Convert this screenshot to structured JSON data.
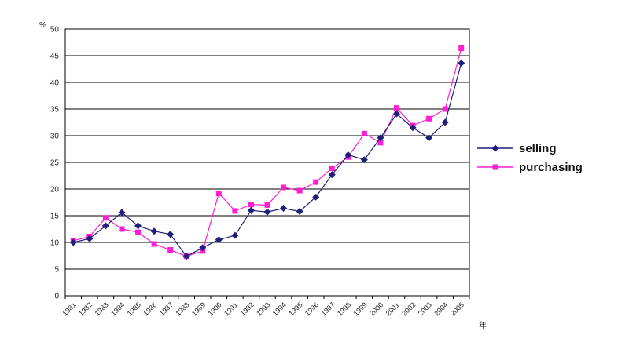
{
  "chart_data": {
    "type": "line",
    "y_unit_label": "%",
    "x_unit_label": "年",
    "categories": [
      "1981",
      "1982",
      "1983",
      "1984",
      "1985",
      "1986",
      "1987",
      "1988",
      "1989",
      "1900",
      "1991",
      "1992",
      "1993",
      "1994",
      "1995",
      "1996",
      "1997",
      "1998",
      "1999",
      "2000",
      "2001",
      "2002",
      "2003",
      "2004",
      "2005"
    ],
    "ylim": [
      0,
      50
    ],
    "yticks": [
      0,
      5,
      10,
      15,
      20,
      25,
      30,
      35,
      40,
      45,
      50
    ],
    "grid": true,
    "legend_position": "right",
    "series": [
      {
        "name": "selling",
        "color": "#1f1f7a",
        "marker": "diamond",
        "values": [
          10.0,
          10.7,
          13.1,
          15.6,
          13.1,
          12.1,
          11.5,
          7.4,
          9.0,
          10.5,
          11.3,
          16.0,
          15.7,
          16.4,
          15.8,
          18.5,
          22.7,
          26.4,
          25.5,
          29.6,
          34.1,
          31.5,
          29.6,
          32.5,
          43.6
        ]
      },
      {
        "name": "purchasing",
        "color": "#ff1fd2",
        "marker": "square",
        "values": [
          10.3,
          11.1,
          14.6,
          12.5,
          11.9,
          9.7,
          8.6,
          7.4,
          8.4,
          19.2,
          15.9,
          17.1,
          17.0,
          20.3,
          19.7,
          21.3,
          23.9,
          26.0,
          30.4,
          28.7,
          35.2,
          31.9,
          33.2,
          35.0,
          46.4
        ]
      }
    ]
  }
}
